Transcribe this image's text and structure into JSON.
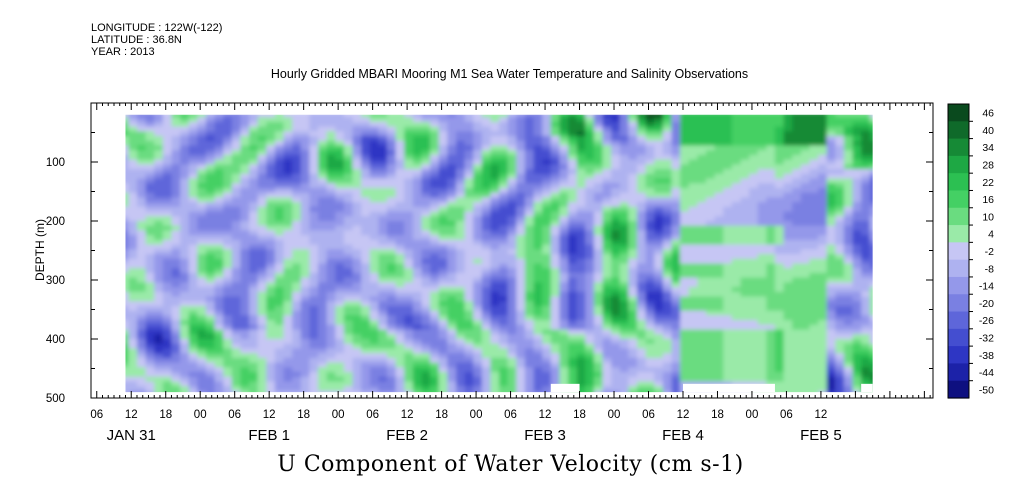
{
  "meta": {
    "longitude": "LONGITUDE : 122W(-122)",
    "latitude": "LATITUDE : 36.8N",
    "year": "YEAR : 2013"
  },
  "chart_data": {
    "type": "heatmap",
    "title": "Hourly Gridded MBARI Mooring M1 Sea Water Temperature and Salinity Observations",
    "xlabel": "U Component of Water Velocity (cm s-1)",
    "ylabel": "DEPTH (m)",
    "ylim": [
      500,
      0
    ],
    "y_ticks": [
      100,
      200,
      300,
      400,
      500
    ],
    "x_hour_ticks": [
      "06",
      "12",
      "18",
      "00",
      "06",
      "12",
      "18",
      "00",
      "06",
      "12",
      "18",
      "00",
      "06",
      "12",
      "18",
      "00",
      "06",
      "12",
      "18",
      "00",
      "06",
      "12"
    ],
    "x_day_labels": [
      "JAN 31",
      "FEB  1",
      "FEB  2",
      "FEB  3",
      "FEB  4",
      "FEB  5"
    ],
    "colorbar": {
      "levels": [
        46,
        40,
        34,
        28,
        22,
        16,
        10,
        4,
        -2,
        -8,
        -14,
        -20,
        -26,
        -32,
        -38,
        -44,
        -50
      ],
      "colors_top_to_bottom": [
        "#0a4a1e",
        "#0f6a2a",
        "#168a36",
        "#1ea844",
        "#2cc052",
        "#44d064",
        "#6adc80",
        "#9aeaa8",
        "#c6c6f4",
        "#aeb2f0",
        "#9498ea",
        "#7a80e2",
        "#5e66da",
        "#444ed0",
        "#2e36c4",
        "#1c22a8",
        "#0e1080"
      ]
    },
    "data_extent": {
      "start": "JAN 31 11:00",
      "end": "FEB 5 23:00",
      "depth_min": 20,
      "depth_max": 490
    },
    "grid": false,
    "legend": "right"
  }
}
